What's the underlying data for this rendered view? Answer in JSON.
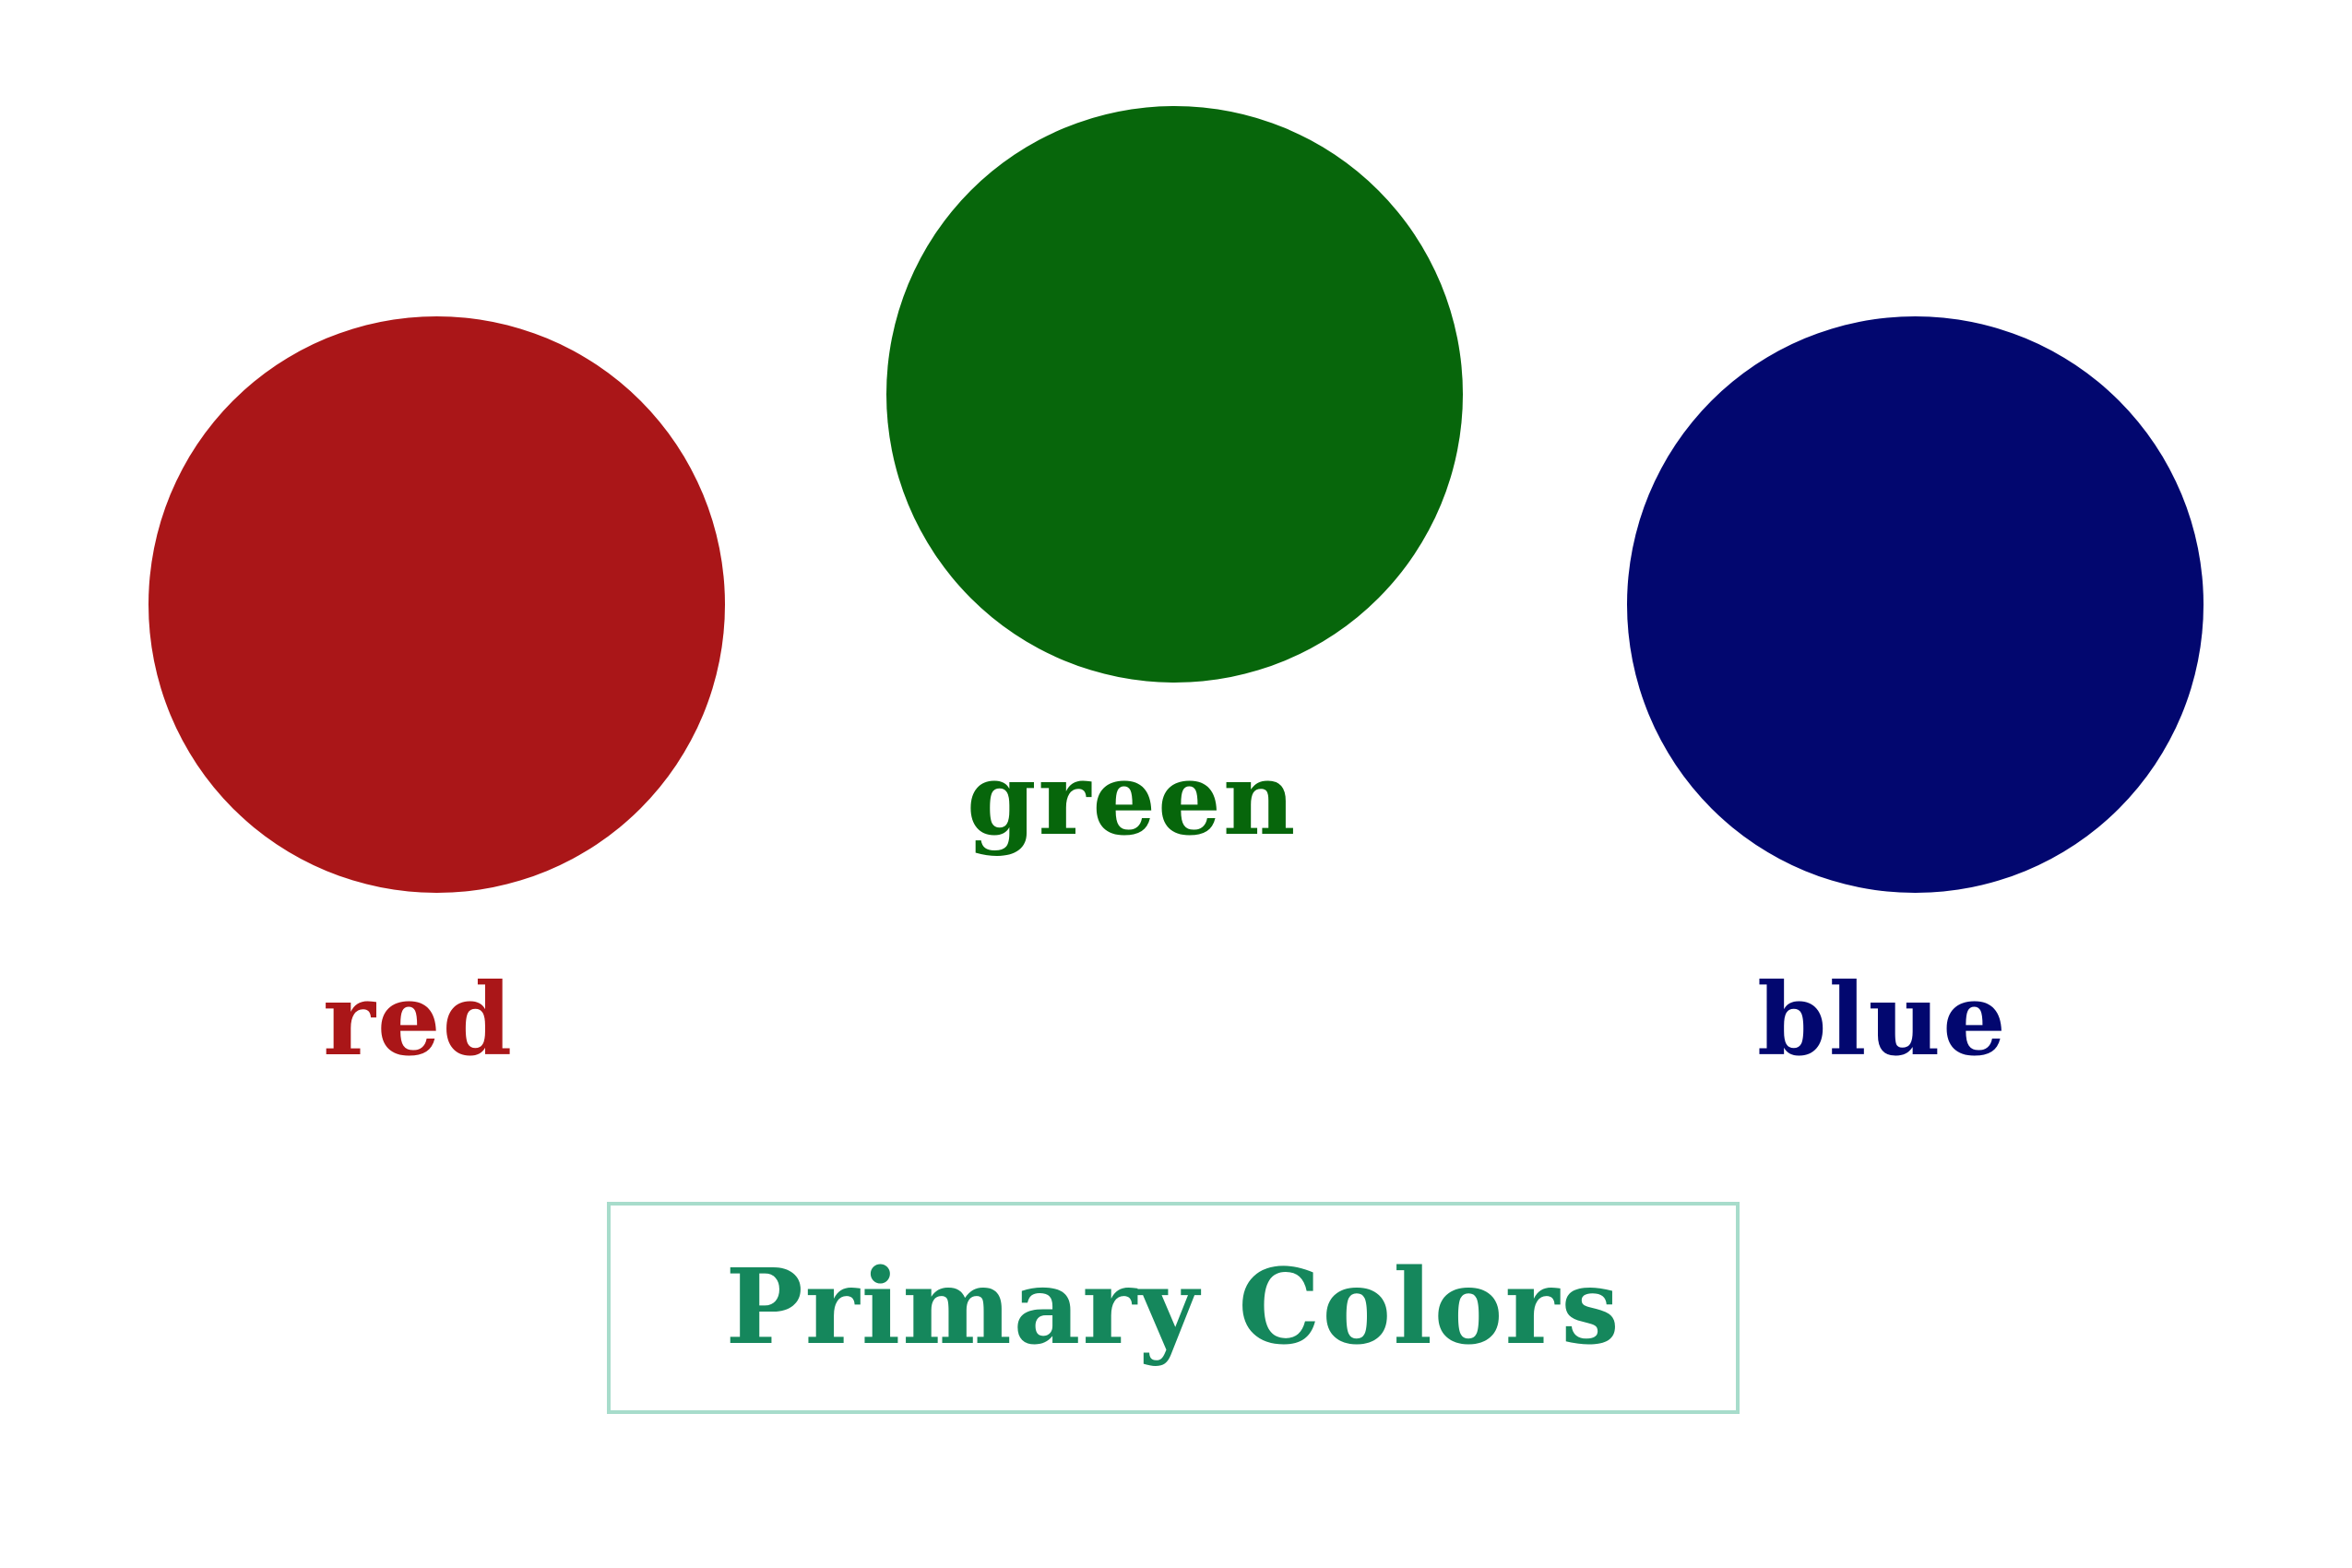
{
  "colors": {
    "red": "#aa1618",
    "green": "#07660b",
    "blue": "#02076f",
    "title_text": "#15875c",
    "title_border": "#a7dccb"
  },
  "labels": {
    "red": "red",
    "green": "green",
    "blue": "blue"
  },
  "title": "Primary Colors"
}
